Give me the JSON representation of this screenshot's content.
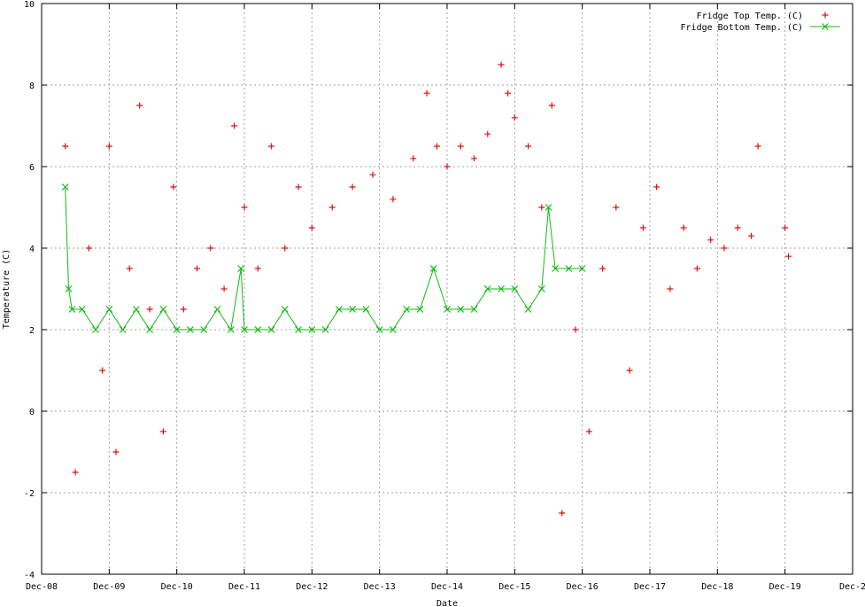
{
  "chart_data": {
    "type": "line",
    "title": "",
    "xlabel": "Date",
    "ylabel": "Temperature (C)",
    "x_ticks": [
      "Dec-08",
      "Dec-09",
      "Dec-10",
      "Dec-11",
      "Dec-12",
      "Dec-13",
      "Dec-14",
      "Dec-15",
      "Dec-16",
      "Dec-17",
      "Dec-18",
      "Dec-19",
      "Dec-2"
    ],
    "xlim": [
      8,
      20
    ],
    "y_ticks": [
      -4,
      -2,
      0,
      2,
      4,
      6,
      8,
      10
    ],
    "ylim": [
      -4,
      10
    ],
    "grid": true,
    "legend": "top-right",
    "colors": {
      "top": "#dd1111",
      "bottom": "#11bb11"
    },
    "series": [
      {
        "name": "Fridge Top Temp. (C)",
        "style": "points-plus",
        "segments": [
          {
            "x": [
              8.35,
              8.5,
              8.7,
              8.9,
              9.0,
              9.1,
              9.3,
              9.45,
              9.6,
              9.8,
              9.95,
              10.1,
              10.3,
              10.5,
              10.7,
              10.85,
              11.0,
              11.2,
              11.4,
              11.6,
              11.8,
              12.0,
              12.3,
              12.6,
              12.9,
              13.2,
              13.5,
              13.7,
              13.85,
              14.0,
              14.2,
              14.4,
              14.6,
              14.8,
              14.9,
              15.0,
              15.2,
              15.4,
              15.55,
              15.7,
              15.9,
              16.1,
              16.3,
              16.5,
              16.7,
              16.9,
              17.1,
              17.3,
              17.5,
              17.7,
              17.9,
              18.1,
              18.3,
              18.5,
              18.6
            ],
            "y": [
              6.5,
              -1.5,
              4.0,
              1.0,
              6.5,
              -1.0,
              3.5,
              7.5,
              2.5,
              -0.5,
              5.5,
              2.5,
              3.5,
              4.0,
              3.0,
              7.0,
              5.0,
              3.5,
              6.5,
              4.0,
              5.5,
              4.5,
              5.0,
              5.5,
              5.8,
              5.2,
              6.2,
              7.8,
              6.5,
              6.0,
              6.5,
              6.2,
              6.8,
              8.5,
              7.8,
              7.2,
              6.5,
              5.0,
              7.5,
              -2.5,
              2.0,
              -0.5,
              3.5,
              5.0,
              1.0,
              4.5,
              5.5,
              3.0,
              4.5,
              3.5,
              4.2,
              4.0,
              4.5,
              4.3,
              6.5
            ]
          },
          {
            "x": [
              19.0,
              19.05
            ],
            "y": [
              4.5,
              3.8
            ]
          }
        ]
      },
      {
        "name": "Fridge Bottom Temp. (C)",
        "style": "linespoints-x",
        "segments": [
          {
            "x": [
              8.35,
              8.4,
              8.45,
              8.6,
              8.8,
              9.0,
              9.2,
              9.4,
              9.6,
              9.8,
              10.0,
              10.2,
              10.4,
              10.6,
              10.8,
              10.95,
              11.0,
              11.2,
              11.4,
              11.6,
              11.8,
              12.0,
              12.2,
              12.4,
              12.6,
              12.8,
              13.0,
              13.2,
              13.4,
              13.6,
              13.8,
              14.0,
              14.2,
              14.4,
              14.6,
              14.8,
              15.0,
              15.2,
              15.4,
              15.5,
              15.6,
              15.8,
              16.0
            ],
            "y": [
              5.5,
              3.0,
              2.5,
              2.5,
              2.0,
              2.5,
              2.0,
              2.5,
              2.0,
              2.5,
              2.0,
              2.0,
              2.0,
              2.5,
              2.0,
              3.5,
              2.0,
              2.0,
              2.0,
              2.5,
              2.0,
              2.0,
              2.0,
              2.5,
              2.5,
              2.5,
              2.0,
              2.0,
              2.5,
              2.5,
              3.5,
              2.5,
              2.5,
              2.5,
              3.0,
              3.0,
              3.0,
              2.5,
              3.0,
              5.0,
              3.5,
              3.5,
              3.5
            ]
          }
        ]
      }
    ]
  }
}
